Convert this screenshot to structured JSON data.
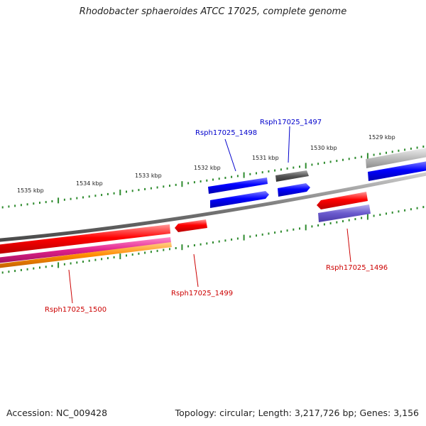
{
  "title": "Rhodobacter sphaeroides ATCC 17025, complete genome",
  "footer": {
    "accession": "Accession: NC_009428",
    "summary": "Topology: circular; Length: 3,217,726 bp; Genes: 3,156"
  },
  "colors": {
    "backbone": "#8a8a8a",
    "tick": "#2e8b2e",
    "gene_red": "#ff0000",
    "gene_blue": "#0000ff",
    "gene_gray": "#555555",
    "gene_lightgray": "#bdbdbd",
    "gene_purple": "#6a5acd",
    "gene_magenta": "#e0208a",
    "gene_orange": "#ff8c00",
    "label_blue": "#0000cc",
    "label_red": "#cc0000"
  },
  "ticks": {
    "outer": [
      "1535 kbp",
      "1534 kbp",
      "1533 kbp",
      "1532 kbp",
      "1531 kbp",
      "1530 kbp",
      "1529 kbp"
    ]
  },
  "gene_labels": [
    {
      "id": "Rsph17025_1498",
      "text": "Rsph17025_1498",
      "color": "blue"
    },
    {
      "id": "Rsph17025_1497",
      "text": "Rsph17025_1497",
      "color": "blue"
    },
    {
      "id": "Rsph17025_1496",
      "text": "Rsph17025_1496",
      "color": "red"
    },
    {
      "id": "Rsph17025_1499",
      "text": "Rsph17025_1499",
      "color": "red"
    },
    {
      "id": "Rsph17025_1500",
      "text": "Rsph17025_1500",
      "color": "red"
    }
  ]
}
